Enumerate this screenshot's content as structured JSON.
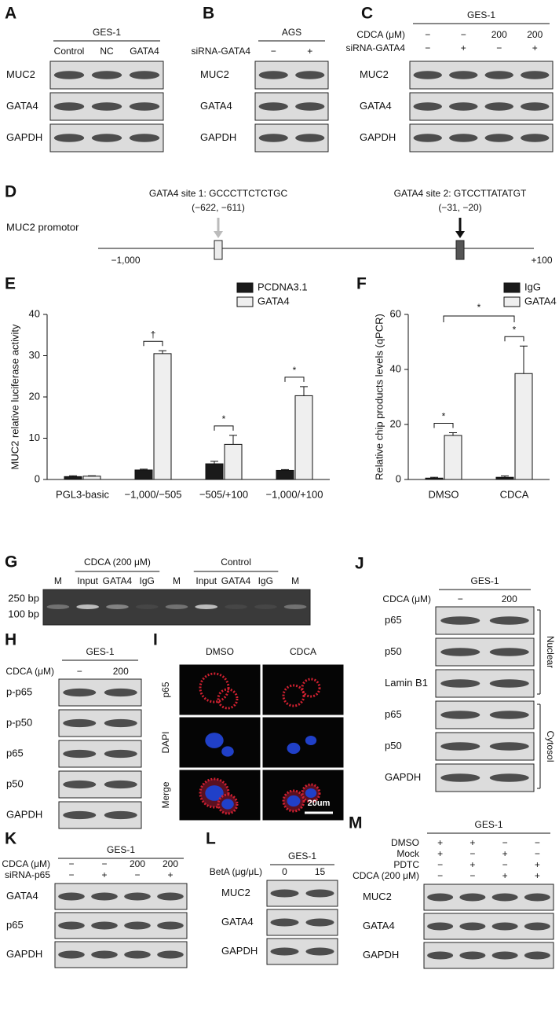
{
  "A": {
    "label": "A",
    "header": "GES-1",
    "lanes": [
      "Control",
      "NC",
      "GATA4"
    ],
    "rows": [
      "MUC2",
      "GATA4",
      "GAPDH"
    ]
  },
  "B": {
    "label": "B",
    "header": "AGS",
    "conditions": [
      {
        "name": "siRNA-GATA4",
        "values": [
          "−",
          "+"
        ]
      }
    ],
    "rows": [
      "MUC2",
      "GATA4",
      "GAPDH"
    ]
  },
  "C": {
    "label": "C",
    "header": "GES-1",
    "conditions": [
      {
        "name": "CDCA (μM)",
        "values": [
          "−",
          "−",
          "200",
          "200"
        ]
      },
      {
        "name": "siRNA-GATA4",
        "values": [
          "−",
          "+",
          "−",
          "+"
        ]
      }
    ],
    "rows": [
      "MUC2",
      "GATA4",
      "GAPDH"
    ]
  },
  "D": {
    "label": "D",
    "gene": "MUC2 promotor",
    "start": "−1,000",
    "end": "+100",
    "sites": [
      {
        "name": "GATA4 site 1: GCCCTTCTCTGC",
        "position": "(−622, −611)"
      },
      {
        "name": "GATA4 site 2: GTCCTTATATGT",
        "position": "(−31, −20)"
      }
    ]
  },
  "chart_data": [
    {
      "type": "bar",
      "panel_label": "E",
      "ylabel": "MUC2 relative luciferase activity",
      "categories": [
        "PGL3-basic",
        "−1,000/−505",
        "−505/+100",
        "−1,000/+100"
      ],
      "series": [
        {
          "name": "PCDNA3.1",
          "color": "#1a1a1a",
          "values": [
            0.7,
            2.3,
            3.8,
            2.2
          ],
          "errors": [
            0.2,
            0.2,
            0.6,
            0.2
          ]
        },
        {
          "name": "GATA4",
          "color": "#efefef",
          "values": [
            0.8,
            30.5,
            8.5,
            20.3
          ],
          "errors": [
            0.1,
            0.7,
            2.2,
            2.2
          ]
        }
      ],
      "ylim": [
        0,
        40
      ],
      "yticks": [
        0,
        10,
        20,
        30,
        40
      ],
      "annotations": [
        {
          "category": "−1,000/−505",
          "text": "†"
        },
        {
          "category": "−505/+100",
          "text": "*"
        },
        {
          "category": "−1,000/+100",
          "text": "*"
        }
      ]
    },
    {
      "type": "bar",
      "panel_label": "F",
      "ylabel": "Relative chip products levels (qPCR)",
      "categories": [
        "DMSO",
        "CDCA"
      ],
      "series": [
        {
          "name": "IgG",
          "color": "#1a1a1a",
          "values": [
            0.5,
            0.8
          ],
          "errors": [
            0.3,
            0.5
          ]
        },
        {
          "name": "GATA4",
          "color": "#efefef",
          "values": [
            16,
            38.5
          ],
          "errors": [
            1,
            10
          ]
        }
      ],
      "ylim": [
        0,
        60
      ],
      "yticks": [
        0,
        20,
        40,
        60
      ],
      "annotations": [
        {
          "category": "DMSO",
          "text": "*"
        },
        {
          "category": "CDCA",
          "text": "*"
        }
      ],
      "comparisons": [
        {
          "between": [
            "DMSO",
            "CDCA"
          ],
          "text": "*"
        }
      ]
    }
  ],
  "G": {
    "label": "G",
    "lanes": [
      "M",
      "Input",
      "GATA4",
      "IgG",
      "M",
      "Input",
      "GATA4",
      "IgG",
      "M"
    ],
    "groups": [
      "CDCA (200 μM)",
      "Control"
    ],
    "markers": [
      "250 bp",
      "100 bp"
    ]
  },
  "H": {
    "label": "H",
    "header": "GES-1",
    "conditions": [
      {
        "name": "CDCA (μM)",
        "values": [
          "−",
          "200"
        ]
      }
    ],
    "rows": [
      "p-p65",
      "p-p50",
      "p65",
      "p50",
      "GAPDH"
    ]
  },
  "I": {
    "label": "I",
    "columns": [
      "DMSO",
      "CDCA"
    ],
    "rows": [
      "p65",
      "DAPI",
      "Merge"
    ],
    "scale_bar": "20um"
  },
  "J": {
    "label": "J",
    "header": "GES-1",
    "conditions": [
      {
        "name": "CDCA (μM)",
        "values": [
          "−",
          "200"
        ]
      }
    ],
    "sections": [
      {
        "name": "Nuclear",
        "rows": [
          "p65",
          "p50",
          "Lamin B1"
        ]
      },
      {
        "name": "Cytosol",
        "rows": [
          "p65",
          "p50",
          "GAPDH"
        ]
      }
    ]
  },
  "K": {
    "label": "K",
    "header": "GES-1",
    "conditions": [
      {
        "name": "CDCA (μM)",
        "values": [
          "−",
          "−",
          "200",
          "200"
        ]
      },
      {
        "name": "siRNA-p65",
        "values": [
          "−",
          "+",
          "−",
          "+"
        ]
      }
    ],
    "rows": [
      "GATA4",
      "p65",
      "GAPDH"
    ]
  },
  "L": {
    "label": "L",
    "header": "GES-1",
    "conditions": [
      {
        "name": "BetA (μg/μL)",
        "values": [
          "0",
          "15"
        ]
      }
    ],
    "rows": [
      "MUC2",
      "GATA4",
      "GAPDH"
    ]
  },
  "M": {
    "label": "M",
    "header": "GES-1",
    "conditions": [
      {
        "name": "DMSO",
        "values": [
          "+",
          "+",
          "−",
          "−"
        ]
      },
      {
        "name": "Mock",
        "values": [
          "+",
          "−",
          "+",
          "−"
        ]
      },
      {
        "name": "PDTC",
        "values": [
          "−",
          "+",
          "−",
          "+"
        ]
      },
      {
        "name": "CDCA (200 μM)",
        "values": [
          "−",
          "−",
          "+",
          "+"
        ]
      }
    ],
    "rows": [
      "MUC2",
      "GATA4",
      "GAPDH"
    ]
  }
}
